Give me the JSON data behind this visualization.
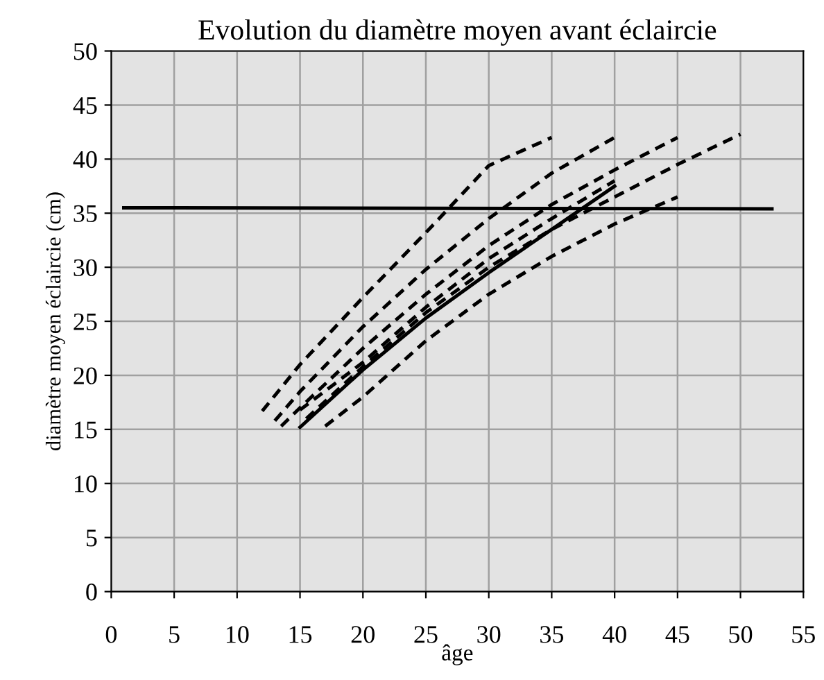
{
  "chart_data": {
    "type": "line",
    "title": "Evolution du diamètre moyen avant éclaircie",
    "xlabel": "âge",
    "ylabel": "diamètre moyen éclaircie (cm)",
    "xlim": [
      0,
      55
    ],
    "xticks": [
      0,
      5,
      10,
      15,
      20,
      25,
      30,
      35,
      40,
      45,
      50,
      55
    ],
    "ylim": [
      0,
      50
    ],
    "yticks": [
      0,
      5,
      10,
      15,
      20,
      25,
      30,
      35,
      40,
      45,
      50
    ],
    "grid": true,
    "legend": false,
    "series": [
      {
        "color": "#000000",
        "line_style": "solid",
        "x": [
          1,
          52.5
        ],
        "values": [
          35.5,
          35.4
        ]
      },
      {
        "color": "#000000",
        "line_style": "solid",
        "x": [
          15,
          20,
          25,
          30,
          35,
          40
        ],
        "values": [
          15.2,
          20.5,
          25.3,
          29.5,
          33.5,
          37.5
        ]
      },
      {
        "color": "#000000",
        "line_style": "dashed",
        "x": [
          12,
          15,
          20,
          25,
          30,
          35
        ],
        "values": [
          16.7,
          21,
          27.2,
          33.2,
          39.4,
          42
        ]
      },
      {
        "color": "#000000",
        "line_style": "dashed",
        "x": [
          13,
          15,
          20,
          25,
          30,
          35,
          40
        ],
        "values": [
          15.8,
          18.5,
          24.5,
          29.8,
          34.5,
          38.7,
          42
        ]
      },
      {
        "color": "#000000",
        "line_style": "dashed",
        "x": [
          13.5,
          15,
          20,
          25,
          30,
          35,
          40,
          45
        ],
        "values": [
          15.3,
          17,
          22.5,
          27.5,
          32,
          35.8,
          39,
          42
        ]
      },
      {
        "color": "#000000",
        "line_style": "dashed",
        "x": [
          15,
          20,
          25,
          30,
          35,
          40
        ],
        "values": [
          16.8,
          21.2,
          26.3,
          30.8,
          34.5,
          38
        ]
      },
      {
        "color": "#000000",
        "line_style": "dashed",
        "x": [
          15.5,
          20,
          25,
          30,
          35,
          40,
          45,
          50
        ],
        "values": [
          16,
          20.8,
          25.8,
          30,
          33.5,
          36.5,
          39.5,
          42.3
        ]
      },
      {
        "color": "#000000",
        "line_style": "dashed",
        "x": [
          17,
          20,
          25,
          30,
          35,
          40,
          45
        ],
        "values": [
          15.3,
          18,
          23.2,
          27.5,
          31,
          34,
          36.5
        ]
      }
    ]
  }
}
